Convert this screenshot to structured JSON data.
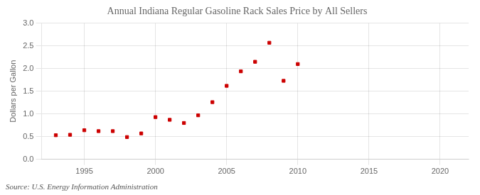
{
  "chart_data": {
    "type": "scatter",
    "title": "Annual Indiana Regular Gasoline Rack Sales Price by All Sellers",
    "ylabel": "Dollars per Gallon",
    "source": "Source: U.S. Energy Information Administration",
    "x": [
      1993,
      1994,
      1995,
      1996,
      1997,
      1998,
      1999,
      2000,
      2001,
      2002,
      2003,
      2004,
      2005,
      2006,
      2007,
      2008,
      2009,
      2010
    ],
    "values": [
      0.53,
      0.54,
      0.64,
      0.62,
      0.62,
      0.49,
      0.57,
      0.93,
      0.87,
      0.8,
      0.97,
      1.26,
      1.62,
      1.94,
      2.15,
      2.57,
      1.73,
      2.1
    ],
    "color": "#cc0000",
    "marker": "square",
    "xlim": [
      1992,
      2022
    ],
    "ylim": [
      0.0,
      3.0
    ],
    "xticks": [
      1995,
      2000,
      2005,
      2010,
      2015,
      2020
    ],
    "yticks": [
      {
        "value": 0.0,
        "label": "0.0"
      },
      0.5,
      {
        "value": 1.0,
        "label": "1.0"
      },
      1.5,
      {
        "value": 2.0,
        "label": "2.0"
      },
      2.5,
      {
        "value": 3.0,
        "label": "3.0"
      }
    ],
    "grid": true
  }
}
